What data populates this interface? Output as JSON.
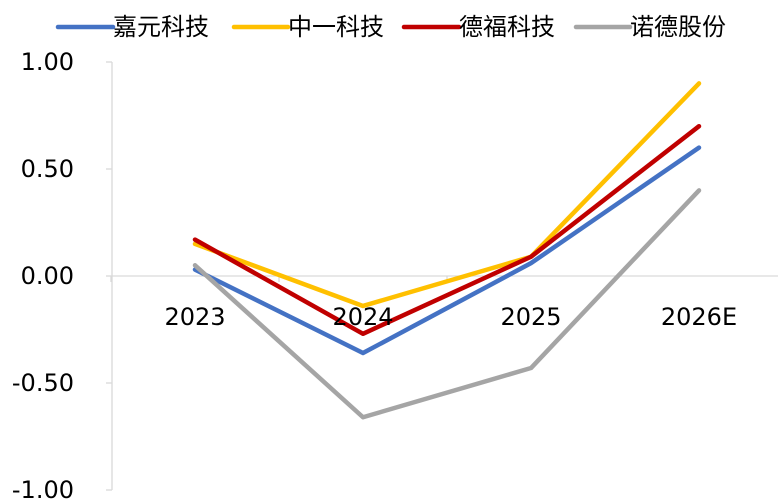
{
  "chart_data": {
    "type": "line",
    "title": "",
    "xlabel": "",
    "ylabel": "",
    "categories": [
      "2023",
      "2024",
      "2025",
      "2026E"
    ],
    "ylim": [
      -1.0,
      1.0
    ],
    "yticks": [
      "1.00",
      "0.50",
      "0.00",
      "-0.50",
      "-1.00"
    ],
    "ytick_values": [
      1.0,
      0.5,
      0.0,
      -0.5,
      -1.0
    ],
    "grid": false,
    "legend_position": "top",
    "series": [
      {
        "name": "嘉元科技",
        "color": "#4472C4",
        "values": [
          0.03,
          -0.36,
          0.06,
          0.6
        ]
      },
      {
        "name": "中一科技",
        "color": "#FFC000",
        "values": [
          0.15,
          -0.14,
          0.09,
          0.9
        ]
      },
      {
        "name": "德福科技",
        "color": "#C00000",
        "values": [
          0.17,
          -0.27,
          0.09,
          0.7
        ]
      },
      {
        "name": "诺德股份",
        "color": "#A5A5A5",
        "values": [
          0.05,
          -0.66,
          -0.43,
          0.4
        ]
      }
    ]
  }
}
